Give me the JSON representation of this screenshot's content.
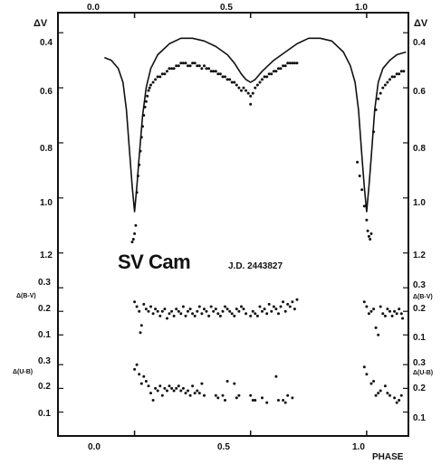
{
  "chart_data": [
    {
      "type": "line+scatter",
      "panel": "delta-v",
      "title": "SV Cam",
      "annotation": "J.D. 2443827",
      "ylabel": "ΔV",
      "xlabel": "PHASE",
      "xlim": [
        -0.33,
        1.18
      ],
      "ylim": [
        0.36,
        1.27
      ],
      "y_inverted": true,
      "x_ticks_top": [
        "0.0",
        "0.5",
        "1.0"
      ],
      "x_ticks_bottom": [
        "0.0",
        "0.5",
        "1.0"
      ],
      "y_ticks": [
        "0.4",
        "0.6",
        "0.8",
        "1.0",
        "1.2"
      ],
      "model_curve": {
        "x": [
          -0.13,
          -0.1,
          -0.07,
          -0.05,
          -0.035,
          -0.02,
          -0.01,
          0.0,
          0.01,
          0.02,
          0.035,
          0.05,
          0.07,
          0.1,
          0.15,
          0.2,
          0.25,
          0.3,
          0.35,
          0.4,
          0.43,
          0.46,
          0.48,
          0.5,
          0.52,
          0.55,
          0.6,
          0.65,
          0.7,
          0.75,
          0.8,
          0.85,
          0.9,
          0.93,
          0.95,
          0.965,
          0.98,
          0.99,
          1.0,
          1.01,
          1.02,
          1.035,
          1.05,
          1.07,
          1.1,
          1.13,
          1.17
        ],
        "y": [
          0.49,
          0.5,
          0.53,
          0.58,
          0.68,
          0.85,
          0.96,
          1.05,
          0.96,
          0.85,
          0.7,
          0.6,
          0.53,
          0.48,
          0.44,
          0.42,
          0.42,
          0.43,
          0.45,
          0.48,
          0.51,
          0.55,
          0.57,
          0.58,
          0.57,
          0.54,
          0.5,
          0.47,
          0.44,
          0.42,
          0.42,
          0.43,
          0.47,
          0.52,
          0.58,
          0.68,
          0.85,
          0.96,
          1.05,
          0.96,
          0.85,
          0.68,
          0.58,
          0.53,
          0.5,
          0.48,
          0.47
        ]
      },
      "observations": {
        "x": [
          -0.01,
          -0.005,
          0.0,
          0.005,
          0.01,
          0.015,
          0.02,
          0.025,
          0.03,
          0.035,
          0.04,
          0.045,
          0.05,
          0.055,
          0.06,
          0.065,
          0.07,
          0.08,
          0.09,
          0.1,
          0.11,
          0.12,
          0.13,
          0.14,
          0.15,
          0.16,
          0.17,
          0.18,
          0.19,
          0.2,
          0.21,
          0.22,
          0.23,
          0.24,
          0.25,
          0.26,
          0.27,
          0.28,
          0.29,
          0.3,
          0.31,
          0.32,
          0.33,
          0.34,
          0.35,
          0.36,
          0.37,
          0.38,
          0.39,
          0.4,
          0.41,
          0.42,
          0.43,
          0.44,
          0.45,
          0.46,
          0.47,
          0.48,
          0.49,
          0.5,
          0.5,
          0.51,
          0.52,
          0.53,
          0.54,
          0.55,
          0.56,
          0.57,
          0.58,
          0.59,
          0.6,
          0.61,
          0.62,
          0.63,
          0.64,
          0.65,
          0.66,
          0.67,
          0.68,
          0.69,
          0.7,
          0.96,
          0.97,
          0.98,
          0.99,
          1.0,
          1.005,
          1.01,
          1.015,
          1.02,
          1.03,
          1.04,
          1.05,
          1.06,
          1.07,
          1.08,
          1.09,
          1.1,
          1.11,
          1.12,
          1.13,
          1.14,
          1.15,
          1.16
        ],
        "y": [
          1.16,
          1.15,
          1.13,
          1.1,
          0.98,
          0.92,
          0.88,
          0.83,
          0.78,
          0.74,
          0.7,
          0.67,
          0.65,
          0.63,
          0.61,
          0.6,
          0.59,
          0.58,
          0.57,
          0.56,
          0.56,
          0.55,
          0.55,
          0.54,
          0.53,
          0.53,
          0.53,
          0.52,
          0.52,
          0.51,
          0.51,
          0.51,
          0.52,
          0.52,
          0.51,
          0.51,
          0.52,
          0.52,
          0.53,
          0.52,
          0.53,
          0.53,
          0.54,
          0.54,
          0.54,
          0.55,
          0.55,
          0.56,
          0.56,
          0.57,
          0.57,
          0.58,
          0.58,
          0.59,
          0.6,
          0.61,
          0.6,
          0.61,
          0.62,
          0.63,
          0.66,
          0.62,
          0.6,
          0.59,
          0.58,
          0.57,
          0.56,
          0.56,
          0.55,
          0.55,
          0.54,
          0.54,
          0.53,
          0.53,
          0.52,
          0.52,
          0.51,
          0.51,
          0.51,
          0.51,
          0.51,
          0.87,
          0.92,
          0.97,
          1.03,
          1.08,
          1.12,
          1.14,
          1.15,
          1.13,
          0.76,
          0.68,
          0.64,
          0.62,
          0.6,
          0.59,
          0.58,
          0.57,
          0.56,
          0.56,
          0.55,
          0.55,
          0.54,
          0.54
        ]
      }
    },
    {
      "type": "scatter",
      "panel": "delta-b-v",
      "ylabel": "Δ(B-V)",
      "ylim": [
        0.055,
        0.335
      ],
      "y_inverted": false,
      "y_ticks": [
        "0.3",
        "0.2",
        "0.1"
      ],
      "x": [
        0.0,
        0.01,
        0.02,
        0.025,
        0.03,
        0.04,
        0.05,
        0.06,
        0.07,
        0.08,
        0.09,
        0.1,
        0.11,
        0.12,
        0.13,
        0.14,
        0.15,
        0.16,
        0.17,
        0.18,
        0.19,
        0.2,
        0.21,
        0.22,
        0.23,
        0.24,
        0.25,
        0.26,
        0.27,
        0.28,
        0.29,
        0.3,
        0.31,
        0.32,
        0.33,
        0.34,
        0.35,
        0.36,
        0.37,
        0.38,
        0.39,
        0.4,
        0.41,
        0.42,
        0.43,
        0.44,
        0.45,
        0.46,
        0.47,
        0.48,
        0.5,
        0.51,
        0.52,
        0.53,
        0.54,
        0.55,
        0.56,
        0.57,
        0.58,
        0.59,
        0.6,
        0.61,
        0.62,
        0.63,
        0.64,
        0.65,
        0.66,
        0.67,
        0.68,
        0.69,
        0.7,
        0.99,
        1.0,
        1.01,
        1.02,
        1.03,
        1.04,
        1.05,
        1.06,
        1.07,
        1.08,
        1.09,
        1.1,
        1.11,
        1.12,
        1.13,
        1.14,
        1.15,
        1.155
      ],
      "y": [
        0.24,
        0.22,
        0.2,
        0.11,
        0.14,
        0.23,
        0.21,
        0.2,
        0.22,
        0.19,
        0.21,
        0.2,
        0.18,
        0.2,
        0.21,
        0.17,
        0.19,
        0.2,
        0.18,
        0.21,
        0.2,
        0.19,
        0.22,
        0.18,
        0.2,
        0.21,
        0.19,
        0.18,
        0.2,
        0.22,
        0.19,
        0.21,
        0.2,
        0.18,
        0.22,
        0.2,
        0.21,
        0.19,
        0.18,
        0.2,
        0.22,
        0.21,
        0.2,
        0.19,
        0.18,
        0.21,
        0.2,
        0.22,
        0.21,
        0.19,
        0.18,
        0.2,
        0.19,
        0.18,
        0.22,
        0.2,
        0.21,
        0.19,
        0.23,
        0.2,
        0.22,
        0.21,
        0.19,
        0.22,
        0.24,
        0.2,
        0.23,
        0.22,
        0.24,
        0.21,
        0.25,
        0.24,
        0.22,
        0.19,
        0.2,
        0.21,
        0.13,
        0.1,
        0.22,
        0.19,
        0.18,
        0.21,
        0.2,
        0.18,
        0.2,
        0.19,
        0.21,
        0.19,
        0.17
      ]
    },
    {
      "type": "scatter",
      "panel": "delta-u-b",
      "ylabel": "Δ(U-B)",
      "ylim": [
        0.045,
        0.335
      ],
      "y_inverted": false,
      "y_ticks": [
        "0.3",
        "0.2",
        "0.1"
      ],
      "x": [
        0.0,
        0.01,
        0.02,
        0.03,
        0.04,
        0.05,
        0.06,
        0.07,
        0.08,
        0.09,
        0.1,
        0.11,
        0.12,
        0.13,
        0.14,
        0.15,
        0.16,
        0.17,
        0.18,
        0.19,
        0.2,
        0.21,
        0.22,
        0.23,
        0.24,
        0.25,
        0.26,
        0.27,
        0.28,
        0.29,
        0.3,
        0.35,
        0.36,
        0.38,
        0.39,
        0.4,
        0.43,
        0.44,
        0.45,
        0.5,
        0.51,
        0.52,
        0.55,
        0.57,
        0.61,
        0.62,
        0.64,
        0.65,
        0.66,
        0.68,
        0.99,
        1.0,
        1.02,
        1.03,
        1.04,
        1.05,
        1.06,
        1.08,
        1.09,
        1.1,
        1.12,
        1.13,
        1.14,
        1.15
      ],
      "y": [
        0.28,
        0.3,
        0.26,
        0.22,
        0.25,
        0.23,
        0.21,
        0.18,
        0.15,
        0.2,
        0.19,
        0.21,
        0.17,
        0.2,
        0.19,
        0.21,
        0.2,
        0.19,
        0.2,
        0.21,
        0.19,
        0.2,
        0.18,
        0.19,
        0.17,
        0.21,
        0.18,
        0.19,
        0.18,
        0.22,
        0.17,
        0.17,
        0.16,
        0.17,
        0.15,
        0.23,
        0.22,
        0.16,
        0.17,
        0.17,
        0.15,
        0.15,
        0.16,
        0.14,
        0.25,
        0.15,
        0.15,
        0.14,
        0.17,
        0.16,
        0.29,
        0.26,
        0.22,
        0.23,
        0.17,
        0.18,
        0.19,
        0.21,
        0.18,
        0.17,
        0.16,
        0.14,
        0.15,
        0.17
      ]
    }
  ]
}
